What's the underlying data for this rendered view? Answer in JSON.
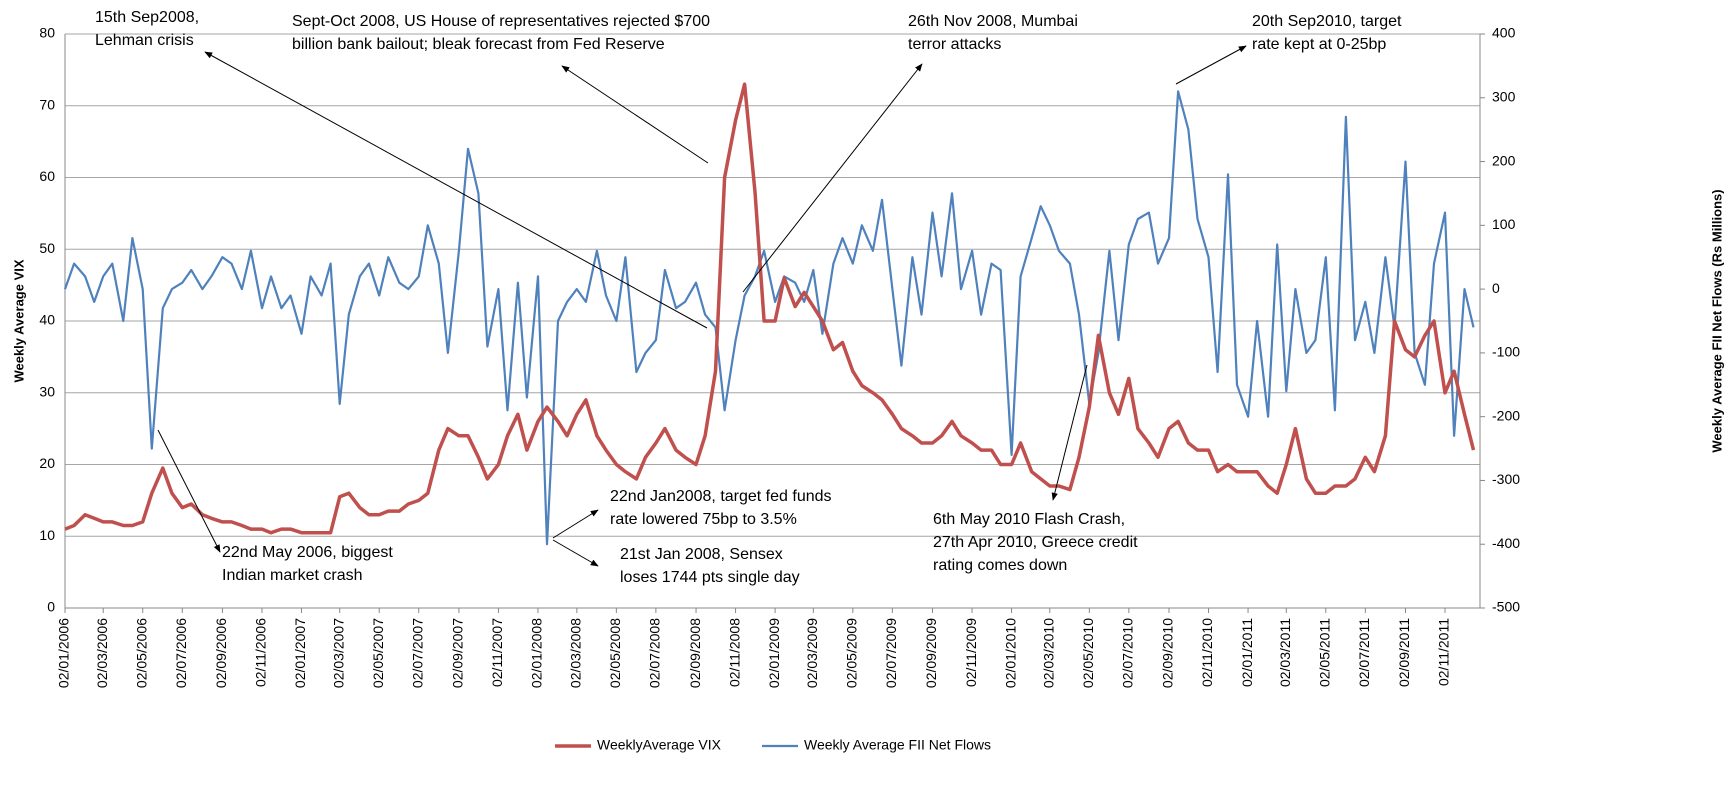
{
  "chart_data": {
    "type": "line",
    "y_label": "Weekly Average VIX",
    "y2_label": "Weekly Average FII Net Flows  (Rs  Millions)",
    "ylim": [
      0,
      80
    ],
    "yticks": [
      0,
      10,
      20,
      30,
      40,
      50,
      60,
      70,
      80
    ],
    "y2lim": [
      -500,
      400
    ],
    "y2ticks": [
      -500,
      -400,
      -300,
      -200,
      -100,
      0,
      100,
      200,
      300,
      400
    ],
    "grid": true,
    "legend": "bottom",
    "xlim": [
      "02/01/2006",
      "26/12/2011"
    ],
    "xticks": [
      "02/01/2006",
      "02/03/2006",
      "02/05/2006",
      "02/07/2006",
      "02/09/2006",
      "02/11/2006",
      "02/01/2007",
      "02/03/2007",
      "02/05/2007",
      "02/07/2007",
      "02/09/2007",
      "02/11/2007",
      "02/01/2008",
      "02/03/2008",
      "02/05/2008",
      "02/07/2008",
      "02/09/2008",
      "02/11/2008",
      "02/01/2009",
      "02/03/2009",
      "02/05/2009",
      "02/07/2009",
      "02/09/2009",
      "02/11/2009",
      "02/01/2010",
      "02/03/2010",
      "02/05/2010",
      "02/07/2010",
      "02/09/2010",
      "02/11/2010",
      "02/01/2011",
      "02/03/2011",
      "02/05/2011",
      "02/07/2011",
      "02/09/2011",
      "02/11/2011"
    ],
    "x": [
      "02/01/2006",
      "16/01/2006",
      "02/02/2006",
      "16/02/2006",
      "02/03/2006",
      "16/03/2006",
      "02/04/2006",
      "16/04/2006",
      "02/05/2006",
      "16/05/2006",
      "02/06/2006",
      "16/06/2006",
      "02/07/2006",
      "16/07/2006",
      "02/08/2006",
      "16/08/2006",
      "02/09/2006",
      "16/09/2006",
      "02/10/2006",
      "16/10/2006",
      "02/11/2006",
      "16/11/2006",
      "02/12/2006",
      "16/12/2006",
      "02/01/2007",
      "16/01/2007",
      "02/02/2007",
      "16/02/2007",
      "02/03/2007",
      "16/03/2007",
      "02/04/2007",
      "16/04/2007",
      "02/05/2007",
      "16/05/2007",
      "02/06/2007",
      "16/06/2007",
      "02/07/2007",
      "16/07/2007",
      "02/08/2007",
      "16/08/2007",
      "02/09/2007",
      "16/09/2007",
      "02/10/2007",
      "16/10/2007",
      "02/11/2007",
      "16/11/2007",
      "02/12/2007",
      "16/12/2007",
      "02/01/2008",
      "16/01/2008",
      "02/02/2008",
      "16/02/2008",
      "02/03/2008",
      "16/03/2008",
      "02/04/2008",
      "16/04/2008",
      "02/05/2008",
      "16/05/2008",
      "02/06/2008",
      "16/06/2008",
      "02/07/2008",
      "16/07/2008",
      "02/08/2008",
      "16/08/2008",
      "02/09/2008",
      "16/09/2008",
      "02/10/2008",
      "16/10/2008",
      "02/11/2008",
      "16/11/2008",
      "02/12/2008",
      "16/12/2008",
      "02/01/2009",
      "16/01/2009",
      "02/02/2009",
      "16/02/2009",
      "02/03/2009",
      "16/03/2009",
      "02/04/2009",
      "16/04/2009",
      "02/05/2009",
      "16/05/2009",
      "02/06/2009",
      "16/06/2009",
      "02/07/2009",
      "16/07/2009",
      "02/08/2009",
      "16/08/2009",
      "02/09/2009",
      "16/09/2009",
      "02/10/2009",
      "16/10/2009",
      "02/11/2009",
      "16/11/2009",
      "02/12/2009",
      "16/12/2009",
      "02/01/2010",
      "16/01/2010",
      "02/02/2010",
      "16/02/2010",
      "02/03/2010",
      "16/03/2010",
      "02/04/2010",
      "16/04/2010",
      "02/05/2010",
      "16/05/2010",
      "02/06/2010",
      "16/06/2010",
      "02/07/2010",
      "16/07/2010",
      "02/08/2010",
      "16/08/2010",
      "02/09/2010",
      "16/09/2010",
      "02/10/2010",
      "16/10/2010",
      "02/11/2010",
      "16/11/2010",
      "02/12/2010",
      "16/12/2010",
      "02/01/2011",
      "16/01/2011",
      "02/02/2011",
      "16/02/2011",
      "02/03/2011",
      "16/03/2011",
      "02/04/2011",
      "16/04/2011",
      "02/05/2011",
      "16/05/2011",
      "02/06/2011",
      "16/06/2011",
      "02/07/2011",
      "16/07/2011",
      "02/08/2011",
      "16/08/2011",
      "02/09/2011",
      "16/09/2011",
      "02/10/2011",
      "16/10/2011",
      "02/11/2011",
      "16/11/2011",
      "02/12/2011",
      "16/12/2011"
    ],
    "series": [
      {
        "name": "WeeklyAverage VIX",
        "color": "#c0504d",
        "axis": "y",
        "values": [
          11,
          11.5,
          13,
          12.5,
          12,
          12,
          11.5,
          11.5,
          12,
          16,
          19.5,
          16,
          14,
          14.5,
          13,
          12.5,
          12,
          12,
          11.5,
          11,
          11,
          10.5,
          11,
          11,
          10.5,
          10.5,
          10.5,
          10.5,
          15.5,
          16,
          14,
          13,
          13,
          13.5,
          13.5,
          14.5,
          15,
          16,
          22,
          25,
          24,
          24,
          21,
          18,
          20,
          24,
          27,
          22,
          26,
          28,
          26,
          24,
          27,
          29,
          24,
          22,
          20,
          19,
          18,
          21,
          23,
          25,
          22,
          21,
          20,
          24,
          33,
          60,
          68,
          73,
          58,
          40,
          40,
          46,
          42,
          44,
          42,
          40,
          36,
          37,
          33,
          31,
          30,
          29,
          27,
          25,
          24,
          23,
          23,
          24,
          26,
          24,
          23,
          22,
          22,
          20,
          20,
          23,
          19,
          18,
          17,
          17,
          16.5,
          21,
          28,
          38,
          30,
          27,
          32,
          25,
          23,
          21,
          25,
          26,
          23,
          22,
          22,
          19,
          20,
          19,
          19,
          19,
          17,
          16,
          20,
          25,
          18,
          16,
          16,
          17,
          17,
          18,
          21,
          19,
          24,
          40,
          36,
          35,
          38,
          40,
          30,
          33,
          27,
          22
        ]
      },
      {
        "name": "Weekly Average FII Net Flows",
        "color": "#4f81bd",
        "axis": "y2",
        "values": [
          0,
          40,
          20,
          -20,
          20,
          40,
          -50,
          80,
          0,
          -250,
          -30,
          0,
          10,
          30,
          0,
          20,
          50,
          40,
          0,
          60,
          -30,
          20,
          -30,
          -10,
          -70,
          20,
          -10,
          40,
          -180,
          -40,
          20,
          40,
          -10,
          50,
          10,
          0,
          20,
          100,
          40,
          -100,
          60,
          220,
          150,
          -90,
          0,
          -190,
          10,
          -170,
          20,
          -400,
          -50,
          -20,
          0,
          -20,
          60,
          -10,
          -50,
          50,
          -130,
          -100,
          -80,
          30,
          -30,
          -20,
          10,
          -40,
          -60,
          -190,
          -80,
          -10,
          20,
          60,
          -20,
          20,
          10,
          -20,
          30,
          -70,
          40,
          80,
          40,
          100,
          60,
          140,
          0,
          -120,
          50,
          -40,
          120,
          20,
          150,
          0,
          60,
          -40,
          40,
          30,
          -260,
          20,
          80,
          130,
          100,
          60,
          40,
          -40,
          -180,
          -100,
          60,
          -80,
          70,
          110,
          120,
          40,
          80,
          310,
          250,
          110,
          50,
          -130,
          180,
          -150,
          -200,
          -50,
          -200,
          70,
          -160,
          0,
          -100,
          -80,
          50,
          -190,
          270,
          -80,
          -20,
          -100,
          50,
          -60,
          200,
          -100,
          -150,
          40,
          120,
          -230,
          0,
          -60
        ]
      }
    ],
    "annotations": [
      {
        "lines": [
          "15th Sep2008,",
          "Lehman crisis"
        ]
      },
      {
        "lines": [
          "Sept-Oct 2008,  US House of representatives rejected $700",
          "billion bank bailout;  bleak forecast from Fed Reserve"
        ]
      },
      {
        "lines": [
          "26th Nov 2008,  Mumbai",
          "terror attacks"
        ]
      },
      {
        "lines": [
          "20th Sep2010,  target",
          "rate kept at 0-25bp"
        ]
      },
      {
        "lines": [
          "22nd Jan2008,  target fed funds",
          "rate lowered 75bp to 3.5%"
        ]
      },
      {
        "lines": [
          "21st Jan 2008,  Sensex",
          "loses 1744 pts single day"
        ]
      },
      {
        "lines": [
          "22nd May 2006,  biggest",
          "Indian market crash"
        ]
      },
      {
        "lines": [
          "6th May 2010  Flash Crash,",
          "27th Apr 2010,  Greece credit",
          "rating comes down"
        ]
      }
    ]
  }
}
